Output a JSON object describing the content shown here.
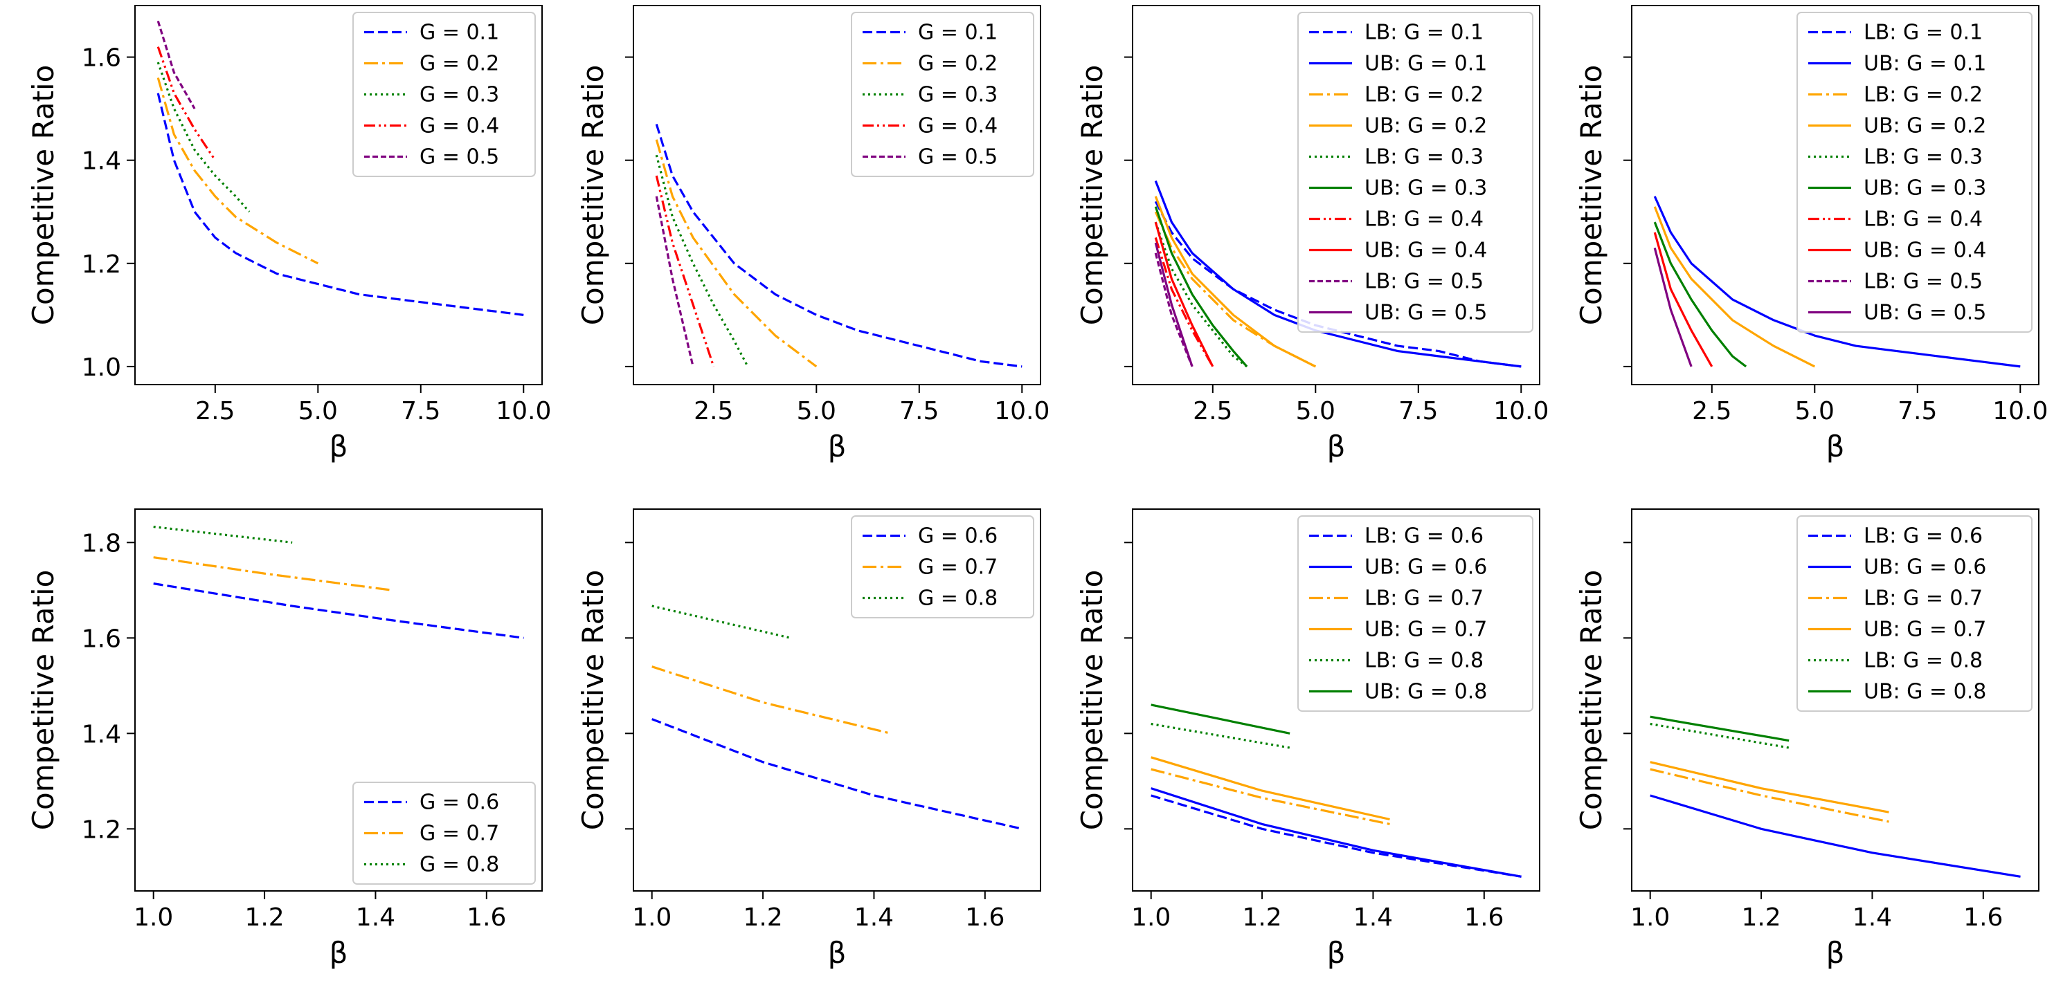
{
  "chart_data": [
    {
      "type": "line",
      "xlabel": "β",
      "ylabel": "Competitive Ratio",
      "xlim": [
        0.55,
        10.45
      ],
      "ylim": [
        0.965,
        1.7
      ],
      "xticks": [
        "2.5",
        "5.0",
        "7.5",
        "10.0"
      ],
      "yticks": [
        "1.0",
        "1.2",
        "1.4",
        "1.6"
      ],
      "show_y_tick_labels": true,
      "legend": "top-right",
      "series": [
        {
          "name": "G = 0.1",
          "color": "#0000ff",
          "style": "dashed",
          "x": [
            1.11,
            1.5,
            2,
            2.5,
            3,
            4,
            5,
            6,
            7,
            8,
            9,
            10
          ],
          "y": [
            1.53,
            1.4,
            1.3,
            1.25,
            1.22,
            1.18,
            1.16,
            1.14,
            1.13,
            1.12,
            1.11,
            1.1
          ]
        },
        {
          "name": "G = 0.2",
          "color": "#ffa500",
          "style": "dashdot",
          "x": [
            1.11,
            1.5,
            2,
            2.5,
            3,
            4,
            5
          ],
          "y": [
            1.56,
            1.45,
            1.38,
            1.33,
            1.29,
            1.24,
            1.2
          ]
        },
        {
          "name": "G = 0.3",
          "color": "#008000",
          "style": "dotted",
          "x": [
            1.11,
            1.5,
            2,
            2.5,
            3,
            3.33
          ],
          "y": [
            1.59,
            1.5,
            1.42,
            1.37,
            1.33,
            1.3
          ]
        },
        {
          "name": "G = 0.4",
          "color": "#ff0000",
          "style": "dashdotdot",
          "x": [
            1.11,
            1.5,
            2,
            2.5
          ],
          "y": [
            1.62,
            1.53,
            1.46,
            1.4
          ]
        },
        {
          "name": "G = 0.5",
          "color": "#800080",
          "style": "densedash",
          "x": [
            1.11,
            1.5,
            2
          ],
          "y": [
            1.67,
            1.57,
            1.5
          ]
        }
      ]
    },
    {
      "type": "line",
      "xlabel": "β",
      "ylabel": "Competitive Ratio",
      "xlim": [
        0.55,
        10.45
      ],
      "ylim": [
        0.965,
        1.7
      ],
      "xticks": [
        "2.5",
        "5.0",
        "7.5",
        "10.0"
      ],
      "yticks": [
        "1.0",
        "1.2",
        "1.4",
        "1.6"
      ],
      "show_y_tick_labels": false,
      "legend": "top-right",
      "series": [
        {
          "name": "G = 0.1",
          "color": "#0000ff",
          "style": "dashed",
          "x": [
            1.11,
            1.5,
            2,
            3,
            4,
            5,
            6,
            7,
            8,
            9,
            10
          ],
          "y": [
            1.47,
            1.37,
            1.3,
            1.2,
            1.14,
            1.1,
            1.07,
            1.05,
            1.03,
            1.01,
            1.0
          ]
        },
        {
          "name": "G = 0.2",
          "color": "#ffa500",
          "style": "dashdot",
          "x": [
            1.11,
            1.5,
            2,
            3,
            4,
            5
          ],
          "y": [
            1.44,
            1.33,
            1.25,
            1.14,
            1.06,
            1.0
          ]
        },
        {
          "name": "G = 0.3",
          "color": "#008000",
          "style": "dotted",
          "x": [
            1.11,
            1.5,
            2,
            2.5,
            3,
            3.33
          ],
          "y": [
            1.41,
            1.29,
            1.2,
            1.12,
            1.05,
            1.0
          ]
        },
        {
          "name": "G = 0.4",
          "color": "#ff0000",
          "style": "dashdotdot",
          "x": [
            1.11,
            1.5,
            2,
            2.5
          ],
          "y": [
            1.37,
            1.24,
            1.12,
            1.0
          ]
        },
        {
          "name": "G = 0.5",
          "color": "#800080",
          "style": "densedash",
          "x": [
            1.11,
            1.5,
            2
          ],
          "y": [
            1.33,
            1.17,
            1.0
          ]
        }
      ]
    },
    {
      "type": "line",
      "xlabel": "β",
      "ylabel": "Competitive Ratio",
      "xlim": [
        0.55,
        10.45
      ],
      "ylim": [
        0.965,
        1.7
      ],
      "xticks": [
        "2.5",
        "5.0",
        "7.5",
        "10.0"
      ],
      "yticks": [
        "1.0",
        "1.2",
        "1.4",
        "1.6"
      ],
      "show_y_tick_labels": false,
      "legend": "top-right",
      "series": [
        {
          "name": "LB: G = 0.1",
          "color": "#0000ff",
          "style": "dashed",
          "x": [
            1.11,
            1.5,
            2,
            3,
            4,
            5,
            6,
            7,
            8,
            9,
            10
          ],
          "y": [
            1.32,
            1.26,
            1.21,
            1.15,
            1.11,
            1.08,
            1.06,
            1.04,
            1.03,
            1.01,
            1.0
          ]
        },
        {
          "name": "UB: G = 0.1",
          "color": "#0000ff",
          "style": "solid",
          "x": [
            1.11,
            1.5,
            2,
            3,
            4,
            5,
            6,
            7,
            8,
            9,
            10
          ],
          "y": [
            1.36,
            1.28,
            1.22,
            1.15,
            1.1,
            1.07,
            1.05,
            1.03,
            1.02,
            1.01,
            1.0
          ]
        },
        {
          "name": "LB: G = 0.2",
          "color": "#ffa500",
          "style": "dashdot",
          "x": [
            1.11,
            1.5,
            2,
            3,
            4,
            5
          ],
          "y": [
            1.3,
            1.23,
            1.17,
            1.09,
            1.04,
            1.0
          ]
        },
        {
          "name": "UB: G = 0.2",
          "color": "#ffa500",
          "style": "solid",
          "x": [
            1.11,
            1.5,
            2,
            3,
            4,
            5
          ],
          "y": [
            1.33,
            1.25,
            1.18,
            1.1,
            1.04,
            1.0
          ]
        },
        {
          "name": "LB: G = 0.3",
          "color": "#008000",
          "style": "dotted",
          "x": [
            1.11,
            1.5,
            2,
            2.5,
            3,
            3.33
          ],
          "y": [
            1.28,
            1.19,
            1.12,
            1.07,
            1.02,
            1.0
          ]
        },
        {
          "name": "UB: G = 0.3",
          "color": "#008000",
          "style": "solid",
          "x": [
            1.11,
            1.5,
            2,
            2.5,
            3,
            3.33
          ],
          "y": [
            1.31,
            1.22,
            1.14,
            1.08,
            1.03,
            1.0
          ]
        },
        {
          "name": "LB: G = 0.4",
          "color": "#ff0000",
          "style": "dashdotdot",
          "x": [
            1.11,
            1.5,
            2,
            2.5
          ],
          "y": [
            1.25,
            1.15,
            1.07,
            1.0
          ]
        },
        {
          "name": "UB: G = 0.4",
          "color": "#ff0000",
          "style": "solid",
          "x": [
            1.11,
            1.5,
            2,
            2.5
          ],
          "y": [
            1.28,
            1.17,
            1.08,
            1.0
          ]
        },
        {
          "name": "LB: G = 0.5",
          "color": "#800080",
          "style": "densedash",
          "x": [
            1.11,
            1.5,
            2
          ],
          "y": [
            1.22,
            1.1,
            1.0
          ]
        },
        {
          "name": "UB: G = 0.5",
          "color": "#800080",
          "style": "solid",
          "x": [
            1.11,
            1.5,
            2
          ],
          "y": [
            1.24,
            1.12,
            1.0
          ]
        }
      ]
    },
    {
      "type": "line",
      "xlabel": "β",
      "ylabel": "Competitive Ratio",
      "xlim": [
        0.55,
        10.45
      ],
      "ylim": [
        0.965,
        1.7
      ],
      "xticks": [
        "2.5",
        "5.0",
        "7.5",
        "10.0"
      ],
      "yticks": [
        "1.0",
        "1.2",
        "1.4",
        "1.6"
      ],
      "show_y_tick_labels": false,
      "legend": "top-right",
      "series": [
        {
          "name": "LB: G = 0.1",
          "color": "#0000ff",
          "style": "dashed",
          "x": [],
          "y": []
        },
        {
          "name": "UB: G = 0.1",
          "color": "#0000ff",
          "style": "solid",
          "x": [
            1.11,
            1.5,
            2,
            3,
            4,
            5,
            6,
            7,
            8,
            9,
            10
          ],
          "y": [
            1.33,
            1.26,
            1.2,
            1.13,
            1.09,
            1.06,
            1.04,
            1.03,
            1.02,
            1.01,
            1.0
          ]
        },
        {
          "name": "LB: G = 0.2",
          "color": "#ffa500",
          "style": "dashdot",
          "x": [],
          "y": []
        },
        {
          "name": "UB: G = 0.2",
          "color": "#ffa500",
          "style": "solid",
          "x": [
            1.11,
            1.5,
            2,
            3,
            4,
            5
          ],
          "y": [
            1.31,
            1.23,
            1.17,
            1.09,
            1.04,
            1.0
          ]
        },
        {
          "name": "LB: G = 0.3",
          "color": "#008000",
          "style": "dotted",
          "x": [],
          "y": []
        },
        {
          "name": "UB: G = 0.3",
          "color": "#008000",
          "style": "solid",
          "x": [
            1.11,
            1.5,
            2,
            2.5,
            3,
            3.33
          ],
          "y": [
            1.28,
            1.2,
            1.13,
            1.07,
            1.02,
            1.0
          ]
        },
        {
          "name": "LB: G = 0.4",
          "color": "#ff0000",
          "style": "dashdotdot",
          "x": [],
          "y": []
        },
        {
          "name": "UB: G = 0.4",
          "color": "#ff0000",
          "style": "solid",
          "x": [
            1.11,
            1.5,
            2,
            2.5
          ],
          "y": [
            1.26,
            1.15,
            1.07,
            1.0
          ]
        },
        {
          "name": "LB: G = 0.5",
          "color": "#800080",
          "style": "densedash",
          "x": [],
          "y": []
        },
        {
          "name": "UB: G = 0.5",
          "color": "#800080",
          "style": "solid",
          "x": [
            1.11,
            1.5,
            2
          ],
          "y": [
            1.23,
            1.11,
            1.0
          ]
        }
      ]
    },
    {
      "type": "line",
      "xlabel": "β",
      "ylabel": "Competitive Ratio",
      "xlim": [
        0.9667,
        1.7
      ],
      "ylim": [
        1.07,
        1.87
      ],
      "xticks": [
        "1.0",
        "1.2",
        "1.4",
        "1.6"
      ],
      "yticks": [
        "1.2",
        "1.4",
        "1.6",
        "1.8"
      ],
      "show_y_tick_labels": true,
      "legend": "bottom-right",
      "series": [
        {
          "name": "G = 0.6",
          "color": "#0000ff",
          "style": "dashed",
          "x": [
            1.0,
            1.25,
            1.43,
            1.667
          ],
          "y": [
            1.714,
            1.667,
            1.637,
            1.6
          ]
        },
        {
          "name": "G = 0.7",
          "color": "#ffa500",
          "style": "dashdot",
          "x": [
            1.0,
            1.2,
            1.43
          ],
          "y": [
            1.769,
            1.735,
            1.7
          ]
        },
        {
          "name": "G = 0.8",
          "color": "#008000",
          "style": "dotted",
          "x": [
            1.0,
            1.25
          ],
          "y": [
            1.833,
            1.8
          ]
        }
      ]
    },
    {
      "type": "line",
      "xlabel": "β",
      "ylabel": "Competitive Ratio",
      "xlim": [
        0.9667,
        1.7
      ],
      "ylim": [
        1.07,
        1.87
      ],
      "xticks": [
        "1.0",
        "1.2",
        "1.4",
        "1.6"
      ],
      "yticks": [
        "1.2",
        "1.4",
        "1.6",
        "1.8"
      ],
      "show_y_tick_labels": false,
      "legend": "top-right",
      "series": [
        {
          "name": "G = 0.6",
          "color": "#0000ff",
          "style": "dashed",
          "x": [
            1.0,
            1.2,
            1.4,
            1.667
          ],
          "y": [
            1.43,
            1.34,
            1.27,
            1.2
          ]
        },
        {
          "name": "G = 0.7",
          "color": "#ffa500",
          "style": "dashdot",
          "x": [
            1.0,
            1.2,
            1.43
          ],
          "y": [
            1.54,
            1.465,
            1.4
          ]
        },
        {
          "name": "G = 0.8",
          "color": "#008000",
          "style": "dotted",
          "x": [
            1.0,
            1.25
          ],
          "y": [
            1.667,
            1.6
          ]
        }
      ]
    },
    {
      "type": "line",
      "xlabel": "β",
      "ylabel": "Competitive Ratio",
      "xlim": [
        0.9667,
        1.7
      ],
      "ylim": [
        1.07,
        1.87
      ],
      "xticks": [
        "1.0",
        "1.2",
        "1.4",
        "1.6"
      ],
      "yticks": [
        "1.2",
        "1.4",
        "1.6",
        "1.8"
      ],
      "show_y_tick_labels": false,
      "legend": "top-right",
      "series": [
        {
          "name": "LB: G = 0.6",
          "color": "#0000ff",
          "style": "dashed",
          "x": [
            1.0,
            1.2,
            1.4,
            1.667
          ],
          "y": [
            1.27,
            1.2,
            1.15,
            1.1
          ]
        },
        {
          "name": "UB: G = 0.6",
          "color": "#0000ff",
          "style": "solid",
          "x": [
            1.0,
            1.2,
            1.4,
            1.667
          ],
          "y": [
            1.285,
            1.21,
            1.155,
            1.1
          ]
        },
        {
          "name": "LB: G = 0.7",
          "color": "#ffa500",
          "style": "dashdot",
          "x": [
            1.0,
            1.2,
            1.43
          ],
          "y": [
            1.325,
            1.265,
            1.21
          ]
        },
        {
          "name": "UB: G = 0.7",
          "color": "#ffa500",
          "style": "solid",
          "x": [
            1.0,
            1.2,
            1.43
          ],
          "y": [
            1.35,
            1.28,
            1.22
          ]
        },
        {
          "name": "LB: G = 0.8",
          "color": "#008000",
          "style": "dotted",
          "x": [
            1.0,
            1.25
          ],
          "y": [
            1.42,
            1.37
          ]
        },
        {
          "name": "UB: G = 0.8",
          "color": "#008000",
          "style": "solid",
          "x": [
            1.0,
            1.25
          ],
          "y": [
            1.46,
            1.4
          ]
        }
      ]
    },
    {
      "type": "line",
      "xlabel": "β",
      "ylabel": "Competitive Ratio",
      "xlim": [
        0.9667,
        1.7
      ],
      "ylim": [
        1.07,
        1.87
      ],
      "xticks": [
        "1.0",
        "1.2",
        "1.4",
        "1.6"
      ],
      "yticks": [
        "1.2",
        "1.4",
        "1.6",
        "1.8"
      ],
      "show_y_tick_labels": false,
      "legend": "top-right",
      "series": [
        {
          "name": "LB: G = 0.6",
          "color": "#0000ff",
          "style": "dashed",
          "x": [],
          "y": []
        },
        {
          "name": "UB: G = 0.6",
          "color": "#0000ff",
          "style": "solid",
          "x": [
            1.0,
            1.2,
            1.4,
            1.667
          ],
          "y": [
            1.27,
            1.2,
            1.15,
            1.1
          ]
        },
        {
          "name": "LB: G = 0.7",
          "color": "#ffa500",
          "style": "dashdot",
          "x": [
            1.0,
            1.2,
            1.43
          ],
          "y": [
            1.325,
            1.27,
            1.215
          ]
        },
        {
          "name": "UB: G = 0.7",
          "color": "#ffa500",
          "style": "solid",
          "x": [
            1.0,
            1.2,
            1.43
          ],
          "y": [
            1.34,
            1.285,
            1.235
          ]
        },
        {
          "name": "LB: G = 0.8",
          "color": "#008000",
          "style": "dotted",
          "x": [
            1.0,
            1.25
          ],
          "y": [
            1.42,
            1.37
          ]
        },
        {
          "name": "UB: G = 0.8",
          "color": "#008000",
          "style": "solid",
          "x": [
            1.0,
            1.25
          ],
          "y": [
            1.435,
            1.385
          ]
        }
      ]
    }
  ]
}
